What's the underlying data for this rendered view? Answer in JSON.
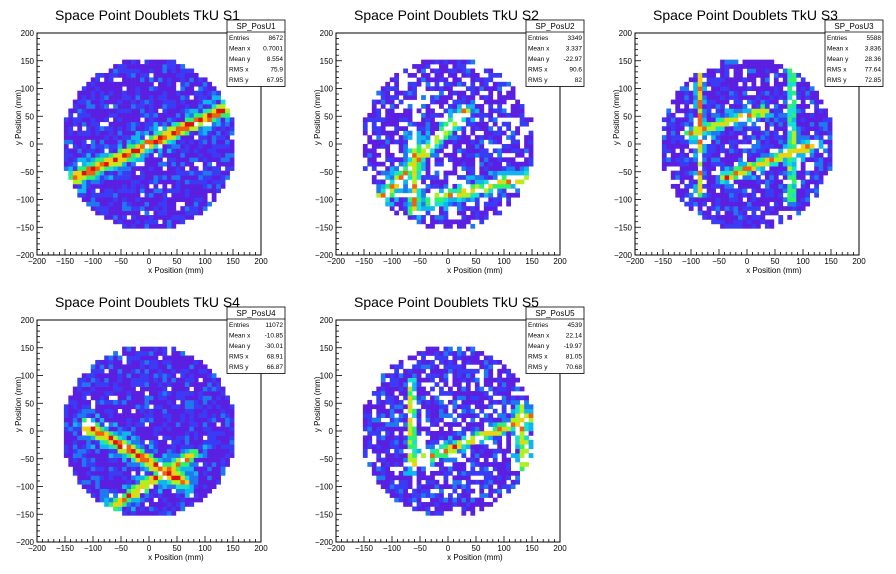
{
  "chart_data": [
    {
      "type": "heatmap",
      "title": "Space Point Doublets TkU S1",
      "xlabel": "x Position (mm)",
      "ylabel": "y Position (mm)",
      "xlim": [
        -200,
        200
      ],
      "ylim": [
        -200,
        200
      ],
      "xticks": [
        "−200",
        "−150",
        "−100",
        "−50",
        "0",
        "50",
        "100",
        "150",
        "200"
      ],
      "yticks": [
        "−200",
        "−150",
        "−100",
        "−50",
        "0",
        "50",
        "100",
        "150",
        "200"
      ],
      "stats": {
        "name": "SP_PosU1",
        "rows": [
          [
            "Entries",
            "8672"
          ],
          [
            "Mean x",
            "0.7001"
          ],
          [
            "Mean y",
            "8.554"
          ],
          [
            "RMS x",
            "75.9"
          ],
          [
            "RMS y",
            "67.95"
          ]
        ]
      },
      "pattern": {
        "bands": [
          [
            -130,
            -60,
            150,
            70,
            14,
            1.0
          ]
        ],
        "sparse": 0.05
      }
    },
    {
      "type": "heatmap",
      "title": "Space Point Doublets TkU S2",
      "xlabel": "x Position (mm)",
      "ylabel": "y Position (mm)",
      "xlim": [
        -200,
        200
      ],
      "ylim": [
        -200,
        200
      ],
      "xticks": [
        "−200",
        "−150",
        "−100",
        "−50",
        "0",
        "50",
        "100",
        "150",
        "200"
      ],
      "yticks": [
        "−200",
        "−150",
        "−100",
        "−50",
        "0",
        "50",
        "100",
        "150",
        "200"
      ],
      "stats": {
        "name": "SP_PosU2",
        "rows": [
          [
            "Entries",
            "3349"
          ],
          [
            "Mean x",
            "3.337"
          ],
          [
            "Mean y",
            "-22.97"
          ],
          [
            "RMS x",
            "90.6"
          ],
          [
            "RMS y",
            "82"
          ]
        ]
      },
      "pattern": {
        "bands": [
          [
            -140,
            -120,
            30,
            60,
            12,
            0.7
          ],
          [
            -60,
            10,
            -60,
            -120,
            10,
            0.6
          ],
          [
            -30,
            -100,
            140,
            -60,
            12,
            0.6
          ]
        ],
        "sparse": 0.3
      }
    },
    {
      "type": "heatmap",
      "title": "Space Point Doublets TkU S3",
      "xlabel": "x Position (mm)",
      "ylabel": "y Position (mm)",
      "xlim": [
        -200,
        200
      ],
      "ylim": [
        -200,
        200
      ],
      "xticks": [
        "−200",
        "−150",
        "−100",
        "−50",
        "0",
        "50",
        "100",
        "150",
        "200"
      ],
      "yticks": [
        "−200",
        "−150",
        "−100",
        "−50",
        "0",
        "50",
        "100",
        "150",
        "200"
      ],
      "stats": {
        "name": "SP_PosU3",
        "rows": [
          [
            "Entries",
            "5588"
          ],
          [
            "Mean x",
            "3.836"
          ],
          [
            "Mean y",
            "28.36"
          ],
          [
            "RMS x",
            "77.64"
          ],
          [
            "RMS y",
            "72.85"
          ]
        ]
      },
      "pattern": {
        "bands": [
          [
            -100,
            20,
            30,
            60,
            10,
            0.8
          ],
          [
            -85,
            150,
            -85,
            -90,
            6,
            0.7
          ],
          [
            80,
            150,
            80,
            -100,
            6,
            0.6
          ],
          [
            -40,
            -60,
            120,
            0,
            10,
            0.8
          ]
        ],
        "sparse": 0.15
      }
    },
    {
      "type": "heatmap",
      "title": "Space Point Doublets TkU S4",
      "xlabel": "x Position (mm)",
      "ylabel": "y Position (mm)",
      "xlim": [
        -200,
        200
      ],
      "ylim": [
        -200,
        200
      ],
      "xticks": [
        "−200",
        "−150",
        "−100",
        "−50",
        "0",
        "50",
        "100",
        "150",
        "200"
      ],
      "yticks": [
        "−200",
        "−150",
        "−100",
        "−50",
        "0",
        "50",
        "100",
        "150",
        "200"
      ],
      "stats": {
        "name": "SP_PosU4",
        "rows": [
          [
            "Entries",
            "11072"
          ],
          [
            "Mean x",
            "-10.85"
          ],
          [
            "Mean y",
            "-30.01"
          ],
          [
            "RMS x",
            "68.91"
          ],
          [
            "RMS y",
            "66.87"
          ]
        ]
      },
      "pattern": {
        "bands": [
          [
            -110,
            10,
            60,
            -90,
            14,
            1.0
          ],
          [
            -70,
            -140,
            80,
            -40,
            12,
            0.8
          ]
        ],
        "sparse": 0.04
      }
    },
    {
      "type": "heatmap",
      "title": "Space Point Doublets TkU S5",
      "xlabel": "x Position (mm)",
      "ylabel": "y Position (mm)",
      "xlim": [
        -200,
        200
      ],
      "ylim": [
        -200,
        200
      ],
      "xticks": [
        "−200",
        "−150",
        "−100",
        "−50",
        "0",
        "50",
        "100",
        "150",
        "200"
      ],
      "yticks": [
        "−200",
        "−150",
        "−100",
        "−50",
        "0",
        "50",
        "100",
        "150",
        "200"
      ],
      "stats": {
        "name": "SP_PosU5",
        "rows": [
          [
            "Entries",
            "4539"
          ],
          [
            "Mean x",
            "22.14"
          ],
          [
            "Mean y",
            "-19.97"
          ],
          [
            "RMS x",
            "81.05"
          ],
          [
            "RMS y",
            "70.68"
          ]
        ]
      },
      "pattern": {
        "bands": [
          [
            -65,
            90,
            -65,
            -60,
            6,
            0.9
          ],
          [
            -70,
            -60,
            160,
            30,
            10,
            0.8
          ],
          [
            130,
            40,
            140,
            -120,
            10,
            0.6
          ]
        ],
        "sparse": 0.25
      }
    }
  ],
  "palette": [
    "#5a1fe0",
    "#3a3cf5",
    "#1f78f0",
    "#10b4ee",
    "#18e0d0",
    "#30f070",
    "#b0f020",
    "#f0d010",
    "#f06010",
    "#e01010"
  ],
  "frame_color": "#000000"
}
